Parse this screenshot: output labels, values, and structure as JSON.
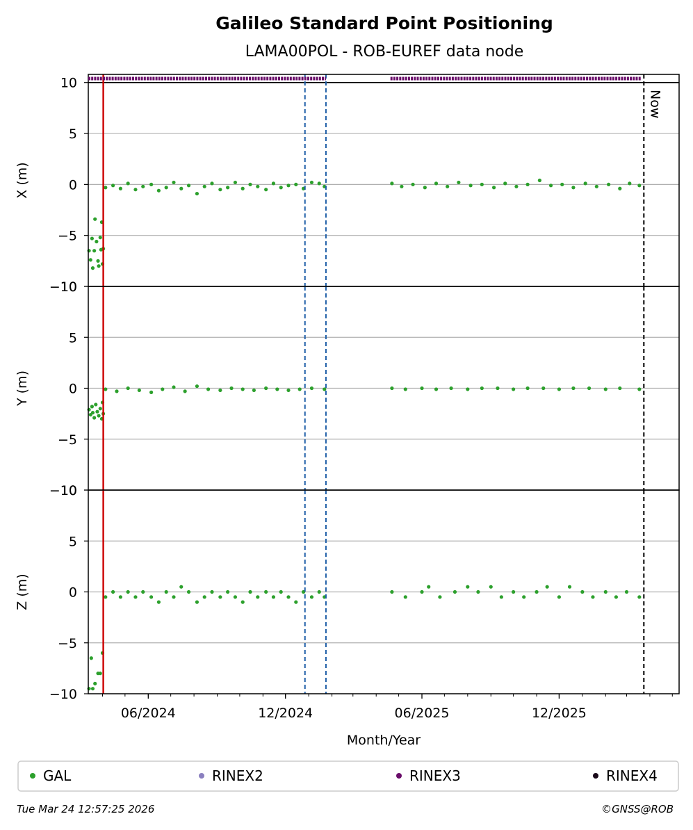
{
  "chart_data": {
    "type": "scatter",
    "title": "Galileo Standard Point Positioning",
    "subtitle": "LAMA00POL - ROB-EUREF data node",
    "xlabel": "Month/Year",
    "x_range": [
      "2024-03-13",
      "2026-05-10"
    ],
    "x_ticks": [
      {
        "date": "2024-06-01",
        "label": "06/2024"
      },
      {
        "date": "2024-12-01",
        "label": "12/2024"
      },
      {
        "date": "2025-06-01",
        "label": "06/2025"
      },
      {
        "date": "2025-12-01",
        "label": "12/2025"
      }
    ],
    "y_ticks": [
      -10,
      -5,
      0,
      5,
      10
    ],
    "grid": true,
    "panels": [
      {
        "ylabel": "X (m)",
        "ylim": [
          -10,
          10.8
        ]
      },
      {
        "ylabel": "Y (m)",
        "ylim": [
          -10,
          10
        ]
      },
      {
        "ylabel": "Z (m)",
        "ylim": [
          -10,
          10
        ]
      }
    ],
    "vlines": [
      {
        "date": "2024-04-02",
        "color": "#cc0000",
        "style": "solid"
      },
      {
        "date": "2024-12-27",
        "color": "#1f5fa8",
        "style": "dashed"
      },
      {
        "date": "2025-01-24",
        "color": "#1f5fa8",
        "style": "dashed"
      },
      {
        "date": "2026-03-24",
        "color": "#000000",
        "style": "dashed",
        "label": "Now"
      }
    ],
    "rinex_bars": [
      {
        "series": "RINEX3",
        "start": "2024-03-13",
        "end": "2025-01-24"
      },
      {
        "series": "RINEX3",
        "start": "2025-04-20",
        "end": "2026-03-20"
      }
    ],
    "series": [
      {
        "name": "X",
        "points": [
          [
            "2024-03-14",
            -6.5
          ],
          [
            "2024-03-16",
            -7.4
          ],
          [
            "2024-03-18",
            -5.3
          ],
          [
            "2024-03-19",
            -8.2
          ],
          [
            "2024-03-21",
            -6.5
          ],
          [
            "2024-03-22",
            -3.4
          ],
          [
            "2024-03-24",
            -5.6
          ],
          [
            "2024-03-26",
            -7.5
          ],
          [
            "2024-03-27",
            -8.0
          ],
          [
            "2024-03-29",
            -5.2
          ],
          [
            "2024-03-30",
            -6.4
          ],
          [
            "2024-03-31",
            -3.7
          ],
          [
            "2024-04-01",
            -7.8
          ],
          [
            "2024-04-02",
            -6.3
          ],
          [
            "2024-04-05",
            -0.3
          ],
          [
            "2024-04-15",
            -0.1
          ],
          [
            "2024-04-25",
            -0.4
          ],
          [
            "2024-05-05",
            0.1
          ],
          [
            "2024-05-15",
            -0.5
          ],
          [
            "2024-05-25",
            -0.2
          ],
          [
            "2024-06-05",
            0.0
          ],
          [
            "2024-06-15",
            -0.6
          ],
          [
            "2024-06-25",
            -0.3
          ],
          [
            "2024-07-05",
            0.2
          ],
          [
            "2024-07-15",
            -0.4
          ],
          [
            "2024-07-25",
            -0.1
          ],
          [
            "2024-08-05",
            -0.9
          ],
          [
            "2024-08-15",
            -0.2
          ],
          [
            "2024-08-25",
            0.1
          ],
          [
            "2024-09-05",
            -0.5
          ],
          [
            "2024-09-15",
            -0.3
          ],
          [
            "2024-09-25",
            0.2
          ],
          [
            "2024-10-05",
            -0.4
          ],
          [
            "2024-10-15",
            0.0
          ],
          [
            "2024-10-25",
            -0.2
          ],
          [
            "2024-11-05",
            -0.5
          ],
          [
            "2024-11-15",
            0.1
          ],
          [
            "2024-11-25",
            -0.3
          ],
          [
            "2024-12-05",
            -0.1
          ],
          [
            "2024-12-15",
            0.0
          ],
          [
            "2024-12-25",
            -0.4
          ],
          [
            "2025-01-05",
            0.2
          ],
          [
            "2025-01-15",
            0.1
          ],
          [
            "2025-01-22",
            -0.2
          ],
          [
            "2025-04-22",
            0.1
          ],
          [
            "2025-05-05",
            -0.2
          ],
          [
            "2025-05-20",
            0.0
          ],
          [
            "2025-06-05",
            -0.3
          ],
          [
            "2025-06-20",
            0.1
          ],
          [
            "2025-07-05",
            -0.2
          ],
          [
            "2025-07-20",
            0.2
          ],
          [
            "2025-08-05",
            -0.1
          ],
          [
            "2025-08-20",
            0.0
          ],
          [
            "2025-09-05",
            -0.3
          ],
          [
            "2025-09-20",
            0.1
          ],
          [
            "2025-10-05",
            -0.2
          ],
          [
            "2025-10-20",
            0.0
          ],
          [
            "2025-11-05",
            0.4
          ],
          [
            "2025-11-20",
            -0.1
          ],
          [
            "2025-12-05",
            0.0
          ],
          [
            "2025-12-20",
            -0.3
          ],
          [
            "2026-01-05",
            0.1
          ],
          [
            "2026-01-20",
            -0.2
          ],
          [
            "2026-02-05",
            0.0
          ],
          [
            "2026-02-20",
            -0.4
          ],
          [
            "2026-03-05",
            0.1
          ],
          [
            "2026-03-18",
            -0.1
          ]
        ]
      },
      {
        "name": "Y",
        "points": [
          [
            "2024-03-14",
            -2.1
          ],
          [
            "2024-03-16",
            -2.6
          ],
          [
            "2024-03-18",
            -1.8
          ],
          [
            "2024-03-19",
            -2.4
          ],
          [
            "2024-03-21",
            -2.9
          ],
          [
            "2024-03-23",
            -1.6
          ],
          [
            "2024-03-25",
            -2.3
          ],
          [
            "2024-03-27",
            -2.7
          ],
          [
            "2024-03-29",
            -2.0
          ],
          [
            "2024-03-31",
            -3.0
          ],
          [
            "2024-04-01",
            -1.4
          ],
          [
            "2024-04-02",
            -2.5
          ],
          [
            "2024-04-05",
            -0.1
          ],
          [
            "2024-04-20",
            -0.3
          ],
          [
            "2024-05-05",
            0.0
          ],
          [
            "2024-05-20",
            -0.2
          ],
          [
            "2024-06-05",
            -0.4
          ],
          [
            "2024-06-20",
            -0.1
          ],
          [
            "2024-07-05",
            0.1
          ],
          [
            "2024-07-20",
            -0.3
          ],
          [
            "2024-08-05",
            0.2
          ],
          [
            "2024-08-20",
            -0.1
          ],
          [
            "2024-09-05",
            -0.2
          ],
          [
            "2024-09-20",
            0.0
          ],
          [
            "2024-10-05",
            -0.1
          ],
          [
            "2024-10-20",
            -0.2
          ],
          [
            "2024-11-05",
            0.0
          ],
          [
            "2024-11-20",
            -0.1
          ],
          [
            "2024-12-05",
            -0.2
          ],
          [
            "2024-12-20",
            -0.1
          ],
          [
            "2025-01-05",
            0.0
          ],
          [
            "2025-01-22",
            -0.1
          ],
          [
            "2025-04-22",
            0.0
          ],
          [
            "2025-05-10",
            -0.1
          ],
          [
            "2025-06-01",
            0.0
          ],
          [
            "2025-06-20",
            -0.1
          ],
          [
            "2025-07-10",
            0.0
          ],
          [
            "2025-08-01",
            -0.1
          ],
          [
            "2025-08-20",
            0.0
          ],
          [
            "2025-09-10",
            0.0
          ],
          [
            "2025-10-01",
            -0.1
          ],
          [
            "2025-10-20",
            0.0
          ],
          [
            "2025-11-10",
            0.0
          ],
          [
            "2025-12-01",
            -0.1
          ],
          [
            "2025-12-20",
            0.0
          ],
          [
            "2026-01-10",
            0.0
          ],
          [
            "2026-02-01",
            -0.1
          ],
          [
            "2026-02-20",
            0.0
          ],
          [
            "2026-03-18",
            -0.1
          ]
        ]
      },
      {
        "name": "Z",
        "points": [
          [
            "2024-03-14",
            -9.5
          ],
          [
            "2024-03-17",
            -6.5
          ],
          [
            "2024-03-19",
            -9.5
          ],
          [
            "2024-03-22",
            -9.0
          ],
          [
            "2024-03-26",
            -8.0
          ],
          [
            "2024-03-29",
            -8.0
          ],
          [
            "2024-04-01",
            -6.0
          ],
          [
            "2024-04-05",
            -0.5
          ],
          [
            "2024-04-15",
            0.0
          ],
          [
            "2024-04-25",
            -0.5
          ],
          [
            "2024-05-05",
            0.0
          ],
          [
            "2024-05-15",
            -0.5
          ],
          [
            "2024-05-25",
            0.0
          ],
          [
            "2024-06-05",
            -0.5
          ],
          [
            "2024-06-15",
            -1.0
          ],
          [
            "2024-06-25",
            0.0
          ],
          [
            "2024-07-05",
            -0.5
          ],
          [
            "2024-07-15",
            0.5
          ],
          [
            "2024-07-25",
            0.0
          ],
          [
            "2024-08-05",
            -1.0
          ],
          [
            "2024-08-15",
            -0.5
          ],
          [
            "2024-08-25",
            0.0
          ],
          [
            "2024-09-05",
            -0.5
          ],
          [
            "2024-09-15",
            0.0
          ],
          [
            "2024-09-25",
            -0.5
          ],
          [
            "2024-10-05",
            -1.0
          ],
          [
            "2024-10-15",
            0.0
          ],
          [
            "2024-10-25",
            -0.5
          ],
          [
            "2024-11-05",
            0.0
          ],
          [
            "2024-11-15",
            -0.5
          ],
          [
            "2024-11-25",
            0.0
          ],
          [
            "2024-12-05",
            -0.5
          ],
          [
            "2024-12-15",
            -1.0
          ],
          [
            "2024-12-25",
            0.0
          ],
          [
            "2025-01-05",
            -0.5
          ],
          [
            "2025-01-15",
            0.0
          ],
          [
            "2025-01-22",
            -0.5
          ],
          [
            "2025-04-22",
            0.0
          ],
          [
            "2025-05-10",
            -0.5
          ],
          [
            "2025-06-01",
            0.0
          ],
          [
            "2025-06-10",
            0.5
          ],
          [
            "2025-06-25",
            -0.5
          ],
          [
            "2025-07-15",
            0.0
          ],
          [
            "2025-08-01",
            0.5
          ],
          [
            "2025-08-15",
            0.0
          ],
          [
            "2025-09-01",
            0.5
          ],
          [
            "2025-09-15",
            -0.5
          ],
          [
            "2025-10-01",
            0.0
          ],
          [
            "2025-10-15",
            -0.5
          ],
          [
            "2025-11-01",
            0.0
          ],
          [
            "2025-11-15",
            0.5
          ],
          [
            "2025-12-01",
            -0.5
          ],
          [
            "2025-12-15",
            0.5
          ],
          [
            "2026-01-01",
            0.0
          ],
          [
            "2026-01-15",
            -0.5
          ],
          [
            "2026-02-01",
            0.0
          ],
          [
            "2026-02-15",
            -0.5
          ],
          [
            "2026-03-01",
            0.0
          ],
          [
            "2026-03-18",
            -0.5
          ]
        ]
      }
    ],
    "legend": {
      "placement": "bottom",
      "items": [
        {
          "label": "GAL",
          "color": "#2ca02c"
        },
        {
          "label": "RINEX2",
          "color": "#8a7fbf"
        },
        {
          "label": "RINEX3",
          "color": "#6a0d6a"
        },
        {
          "label": "RINEX4",
          "color": "#1a0a1a"
        }
      ]
    },
    "colors": {
      "gal": "#2ca02c",
      "rinex3": "#6a0d6a",
      "grid": "#b0b0b0"
    }
  },
  "footer": {
    "timestamp": "Tue Mar 24 12:57:25 2026",
    "copyright": "©GNSS@ROB"
  }
}
